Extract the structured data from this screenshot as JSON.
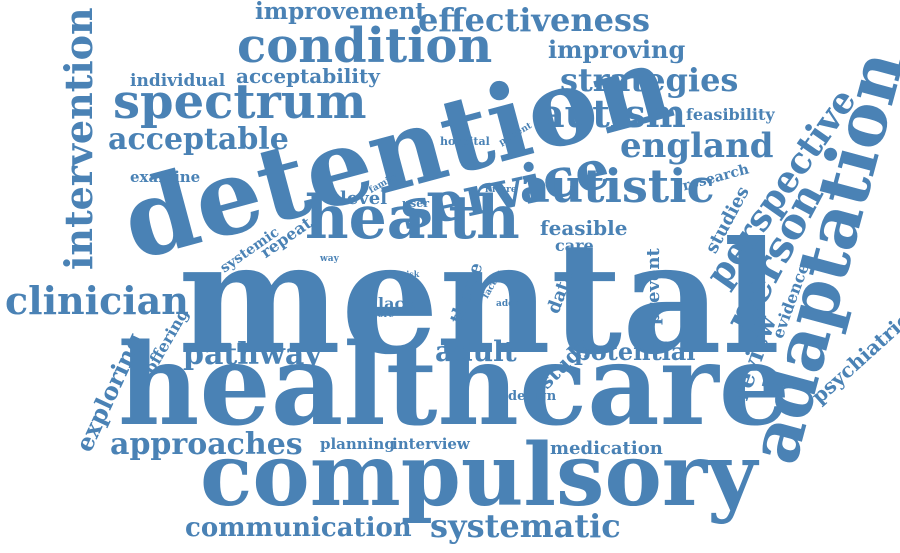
{
  "wordcloud": {
    "color": "#4a82b5",
    "words": [
      {
        "id": "mental",
        "text": "mental"
      },
      {
        "id": "healthcare",
        "text": "healthcare"
      },
      {
        "id": "detention",
        "text": "detention"
      },
      {
        "id": "compulsory",
        "text": "compulsory"
      },
      {
        "id": "adaptation",
        "text": "adaptation"
      },
      {
        "id": "health",
        "text": "health"
      },
      {
        "id": "service",
        "text": "service"
      },
      {
        "id": "condition",
        "text": "condition"
      },
      {
        "id": "spectrum",
        "text": "spectrum"
      },
      {
        "id": "autistic",
        "text": "autistic"
      },
      {
        "id": "autism",
        "text": "autism"
      },
      {
        "id": "person",
        "text": "person"
      },
      {
        "id": "perspective",
        "text": "perspective"
      },
      {
        "id": "england",
        "text": "england"
      },
      {
        "id": "intervention",
        "text": "intervention"
      },
      {
        "id": "clinician",
        "text": "clinician"
      },
      {
        "id": "effectiveness",
        "text": "effectiveness"
      },
      {
        "id": "strategies",
        "text": "strategies"
      },
      {
        "id": "systematic",
        "text": "systematic"
      },
      {
        "id": "approaches",
        "text": "approaches"
      },
      {
        "id": "communication",
        "text": "communication"
      },
      {
        "id": "pathway",
        "text": "pathway"
      },
      {
        "id": "acceptable",
        "text": "acceptable"
      },
      {
        "id": "improvement",
        "text": "improvement"
      },
      {
        "id": "improving",
        "text": "improving"
      },
      {
        "id": "acceptability",
        "text": "acceptability"
      },
      {
        "id": "individual",
        "text": "individual"
      },
      {
        "id": "adult",
        "text": "adult"
      },
      {
        "id": "potential",
        "text": "potential"
      },
      {
        "id": "medication",
        "text": "medication"
      },
      {
        "id": "exploring",
        "text": "exploring"
      },
      {
        "id": "review",
        "text": "review"
      },
      {
        "id": "psychiatric",
        "text": "psychiatric"
      },
      {
        "id": "feasible",
        "text": "feasible"
      },
      {
        "id": "care",
        "text": "care"
      },
      {
        "id": "feasibility",
        "text": "feasibility"
      },
      {
        "id": "research",
        "text": "research"
      },
      {
        "id": "studies",
        "text": "studies"
      },
      {
        "id": "evidence",
        "text": "evidence"
      },
      {
        "id": "examine",
        "text": "examine"
      },
      {
        "id": "level",
        "text": "level"
      },
      {
        "id": "repeat",
        "text": "repeat"
      },
      {
        "id": "systemic",
        "text": "systemic"
      },
      {
        "id": "offering",
        "text": "offering"
      },
      {
        "id": "planning",
        "text": "planning"
      },
      {
        "id": "interview",
        "text": "interview"
      },
      {
        "id": "design",
        "text": "design"
      },
      {
        "id": "study",
        "text": "study"
      },
      {
        "id": "data",
        "text": "data"
      },
      {
        "id": "prevent",
        "text": "prevent"
      },
      {
        "id": "theme",
        "text": "theme"
      },
      {
        "id": "lack",
        "text": "lack"
      },
      {
        "id": "more",
        "text": "more"
      },
      {
        "id": "risk",
        "text": "risk"
      },
      {
        "id": "factor",
        "text": "factor"
      },
      {
        "id": "addr",
        "text": "addr"
      },
      {
        "id": "way",
        "text": "way"
      },
      {
        "id": "family",
        "text": "family"
      },
      {
        "id": "user",
        "text": "user"
      },
      {
        "id": "future",
        "text": "future"
      },
      {
        "id": "hospital",
        "text": "hospital"
      },
      {
        "id": "patient",
        "text": "patient"
      }
    ]
  }
}
